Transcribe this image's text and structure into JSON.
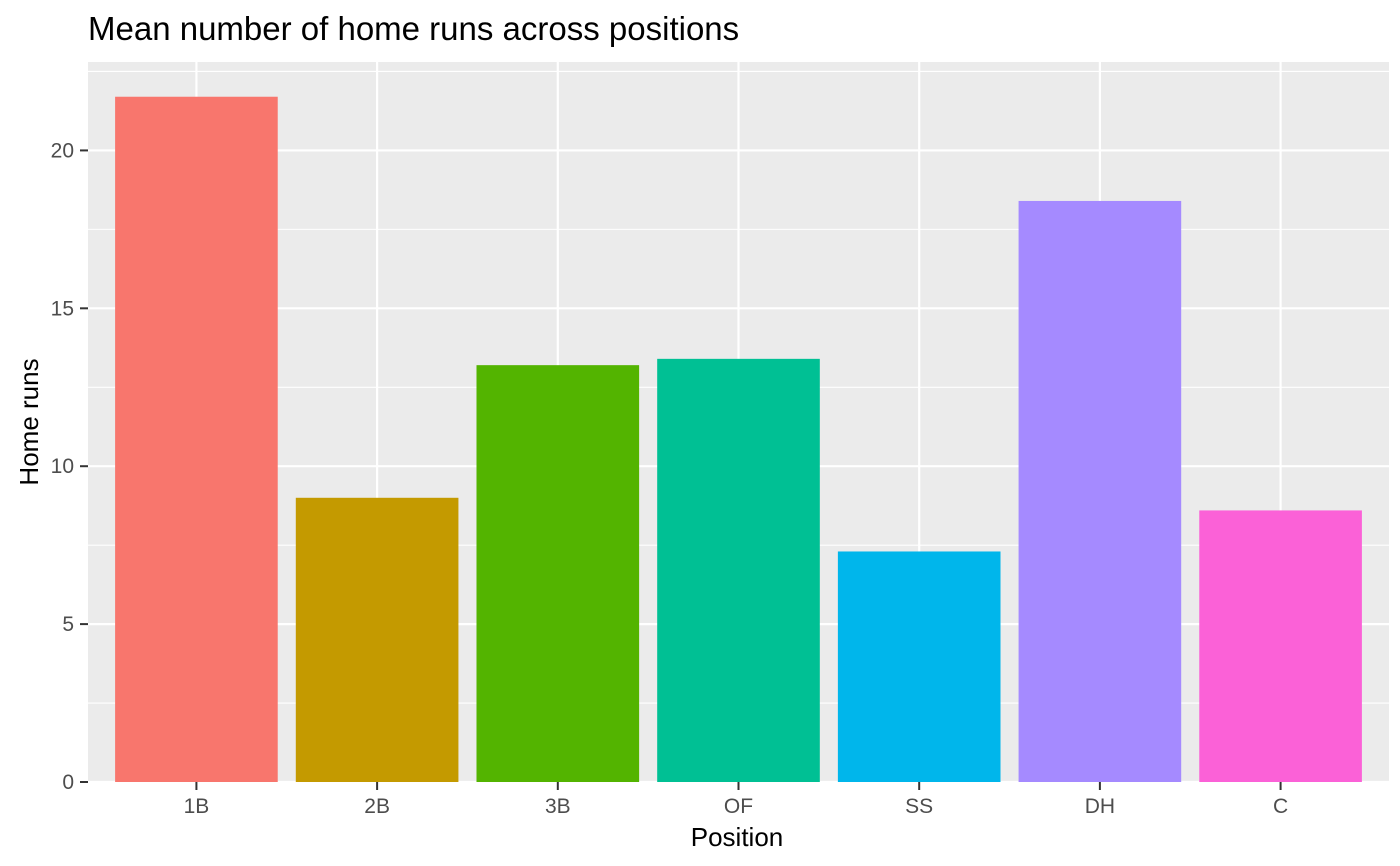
{
  "chart_data": {
    "type": "bar",
    "title": "Mean number of home runs across positions",
    "xlabel": "Position",
    "ylabel": "Home runs",
    "categories": [
      "1B",
      "2B",
      "3B",
      "OF",
      "SS",
      "DH",
      "C"
    ],
    "values": [
      21.7,
      9.0,
      13.2,
      13.4,
      7.3,
      18.4,
      8.6
    ],
    "colors": [
      "#F8766D",
      "#C49A00",
      "#53B400",
      "#00C094",
      "#00B6EB",
      "#A58AFF",
      "#FB61D7"
    ],
    "ylim": [
      0,
      22.8
    ],
    "y_ticks": [
      0,
      5,
      10,
      15,
      20
    ],
    "y_tick_labels": [
      "0",
      "5",
      "10",
      "15",
      "20"
    ],
    "grid": true,
    "legend": "none",
    "panel_background": "#EBEBEB",
    "grid_color": "#FFFFFF"
  }
}
